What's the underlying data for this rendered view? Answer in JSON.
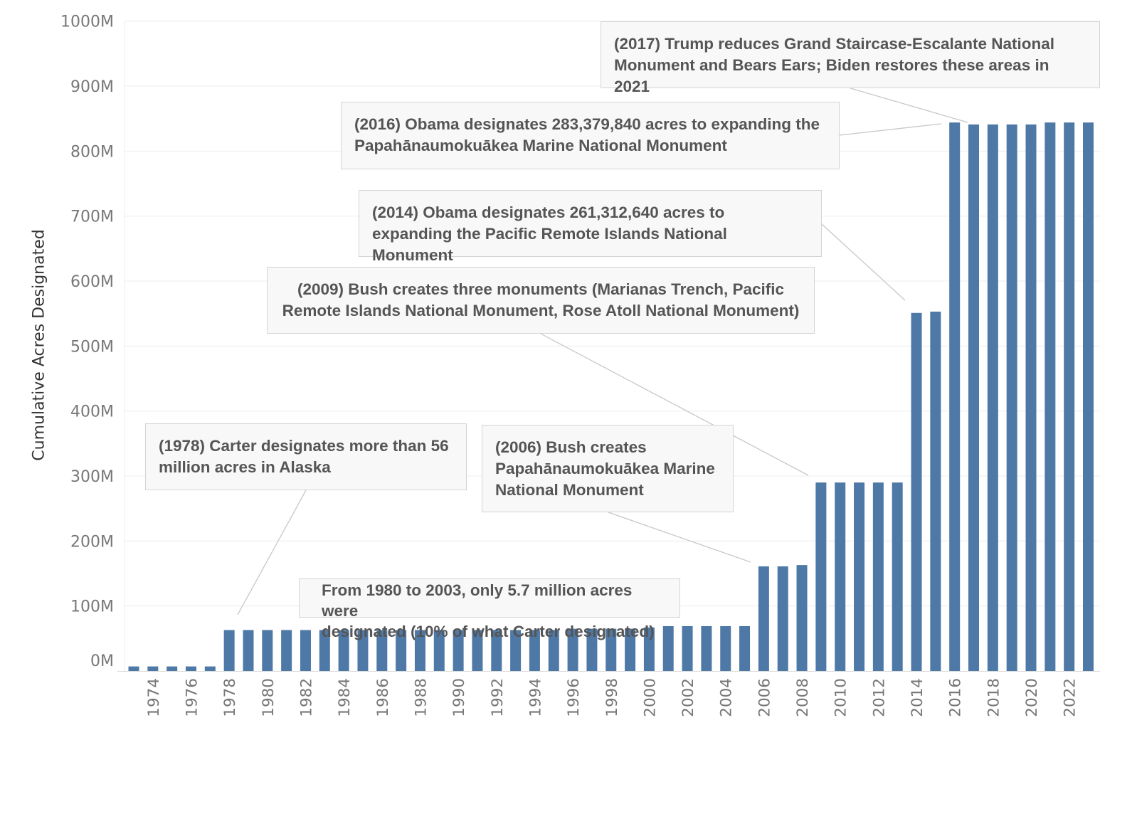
{
  "chart_data": {
    "type": "bar",
    "ylabel": "Cumulative Acres Designated",
    "xlabel": "",
    "x": [
      1973,
      1974,
      1975,
      1976,
      1977,
      1978,
      1979,
      1980,
      1981,
      1982,
      1983,
      1984,
      1985,
      1986,
      1987,
      1988,
      1989,
      1990,
      1991,
      1992,
      1993,
      1994,
      1995,
      1996,
      1997,
      1998,
      1999,
      2000,
      2001,
      2002,
      2003,
      2004,
      2005,
      2006,
      2007,
      2008,
      2009,
      2010,
      2011,
      2012,
      2013,
      2014,
      2015,
      2016,
      2017,
      2018,
      2019,
      2020,
      2021,
      2022,
      2023
    ],
    "values": [
      7,
      7,
      7,
      7,
      7,
      63,
      63,
      63,
      63,
      63,
      63,
      63,
      63,
      63,
      63,
      63,
      63,
      63,
      63,
      63,
      63,
      63,
      63,
      65,
      65,
      65,
      65,
      67,
      69,
      69,
      69,
      69,
      69,
      161,
      161,
      163,
      290,
      290,
      290,
      290,
      290,
      551,
      553,
      844,
      841,
      841,
      841,
      841,
      844,
      844,
      844
    ],
    "x_tick_labels": [
      "1974",
      "1976",
      "1978",
      "1980",
      "1982",
      "1984",
      "1986",
      "1988",
      "1990",
      "1992",
      "1994",
      "1996",
      "1998",
      "2000",
      "2002",
      "2004",
      "2006",
      "2008",
      "2010",
      "2012",
      "2014",
      "2016",
      "2018",
      "2020",
      "2022"
    ],
    "y_ticks": [
      "0M",
      "100M",
      "200M",
      "300M",
      "400M",
      "500M",
      "600M",
      "700M",
      "800M",
      "900M",
      "1000M"
    ],
    "ylim": [
      0,
      1000
    ],
    "units": "million acres",
    "grid": true,
    "bar_color": "#4e79a7",
    "annotations": [
      {
        "id": "a1978",
        "text": "(1978) Carter designates more than 56\nmillion acres in Alaska",
        "year": 1978
      },
      {
        "id": "a1980",
        "text": "From 1980 to 2003, only 5.7 million acres were\ndesignated (10% of what Carter designated)",
        "year": null
      },
      {
        "id": "a2006",
        "text": "(2006) Bush creates\nPapahānaumokuākea Marine\nNational Monument",
        "year": 2006
      },
      {
        "id": "a2009",
        "text": "(2009) Bush creates three monuments (Marianas Trench, Pacific\nRemote Islands National Monument, Rose Atoll National Monument)",
        "year": 2009
      },
      {
        "id": "a2014",
        "text": "(2014) Obama designates 261,312,640 acres to\nexpanding the Pacific Remote Islands National Monument",
        "year": 2014
      },
      {
        "id": "a2016",
        "text": "(2016) Obama designates 283,379,840 acres to expanding the\nPapahānaumokuākea Marine National Monument",
        "year": 2016
      },
      {
        "id": "a2017",
        "text": "(2017) Trump reduces Grand Staircase-Escalante National\nMonument and Bears Ears; Biden restores these areas in 2021",
        "year": 2017
      }
    ]
  }
}
